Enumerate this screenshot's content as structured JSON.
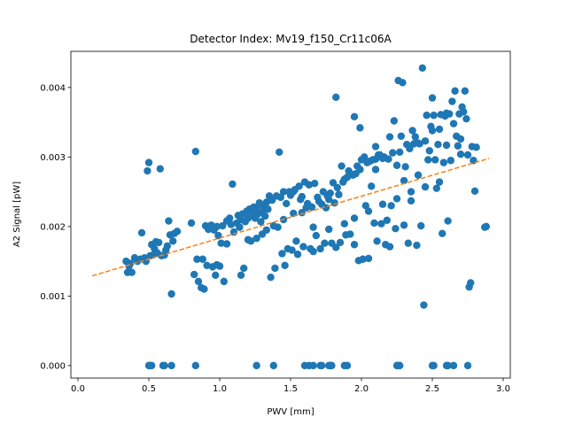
{
  "chart_data": {
    "type": "scatter",
    "title": "Detector Index: Mv19_f150_Cr11c06A",
    "xlabel": "PWV [mm]",
    "ylabel": "A2 Signal [pW]",
    "xlim": [
      -0.05,
      3.05
    ],
    "ylim": [
      -0.00018,
      0.00452
    ],
    "xticks": [
      0.0,
      0.5,
      1.0,
      1.5,
      2.0,
      2.5,
      3.0
    ],
    "xtick_labels": [
      "0.0",
      "0.5",
      "1.0",
      "1.5",
      "2.0",
      "2.5",
      "3.0"
    ],
    "yticks": [
      0.0,
      0.001,
      0.002,
      0.003,
      0.004
    ],
    "ytick_labels": [
      "0.000",
      "0.001",
      "0.002",
      "0.003",
      "0.004"
    ],
    "grid": false,
    "legend": false,
    "colors": {
      "points": "#1f77b4",
      "fit_line": "#ff7f0e"
    },
    "fit_line": {
      "style": "dashed",
      "x": [
        0.1,
        2.9
      ],
      "y": [
        0.00129,
        0.00298
      ]
    },
    "points": [
      [
        0.34,
        0.0015
      ],
      [
        0.35,
        0.00134
      ],
      [
        0.36,
        0.00143
      ],
      [
        0.37,
        0.00147
      ],
      [
        0.38,
        0.00134
      ],
      [
        0.4,
        0.00155
      ],
      [
        0.42,
        0.0015
      ],
      [
        0.44,
        0.00153
      ],
      [
        0.45,
        0.00191
      ],
      [
        0.47,
        0.00155
      ],
      [
        0.48,
        0.0015
      ],
      [
        0.49,
        0.0028
      ],
      [
        0.5,
        0.00292
      ],
      [
        0.51,
        0.00158
      ],
      [
        0.52,
        0.00174
      ],
      [
        0.53,
        0.00159
      ],
      [
        0.54,
        0.00168
      ],
      [
        0.55,
        0.00178
      ],
      [
        0.56,
        0.00162
      ],
      [
        0.57,
        0.00177
      ],
      [
        0.58,
        0.00283
      ],
      [
        0.59,
        0.00158
      ],
      [
        0.61,
        0.00159
      ],
      [
        0.62,
        0.00166
      ],
      [
        0.63,
        0.00172
      ],
      [
        0.64,
        0.00208
      ],
      [
        0.65,
        0.00188
      ],
      [
        0.66,
        0.00103
      ],
      [
        0.67,
        0.00179
      ],
      [
        0.68,
        0.0019
      ],
      [
        0.7,
        0.00193
      ],
      [
        0.8,
        0.00205
      ],
      [
        0.82,
        0.00131
      ],
      [
        0.83,
        0.00308
      ],
      [
        0.84,
        0.00153
      ],
      [
        0.85,
        0.00121
      ],
      [
        0.87,
        0.00112
      ],
      [
        0.88,
        0.00153
      ],
      [
        0.89,
        0.0011
      ],
      [
        0.9,
        0.00201
      ],
      [
        0.91,
        0.00144
      ],
      [
        0.92,
        0.00196
      ],
      [
        0.94,
        0.00202
      ],
      [
        0.95,
        0.00142
      ],
      [
        0.96,
        0.00195
      ],
      [
        0.97,
        0.0013
      ],
      [
        0.98,
        0.002
      ],
      [
        0.99,
        0.00187
      ],
      [
        1.0,
        0.00143
      ],
      [
        1.01,
        0.00176
      ],
      [
        1.02,
        0.00201
      ],
      [
        1.03,
        0.00121
      ],
      [
        1.05,
        0.00208
      ],
      [
        1.07,
        0.00212
      ],
      [
        1.08,
        0.00203
      ],
      [
        1.09,
        0.00261
      ],
      [
        1.1,
        0.00192
      ],
      [
        1.12,
        0.00205
      ],
      [
        1.13,
        0.00216
      ],
      [
        1.14,
        0.00199
      ],
      [
        1.15,
        0.0021
      ],
      [
        1.16,
        0.00218
      ],
      [
        1.17,
        0.0014
      ],
      [
        1.18,
        0.00207
      ],
      [
        1.19,
        0.00222
      ],
      [
        1.2,
        0.00212
      ],
      [
        1.21,
        0.00225
      ],
      [
        1.22,
        0.00179
      ],
      [
        1.23,
        0.00218
      ],
      [
        1.24,
        0.00228
      ],
      [
        1.25,
        0.00212
      ],
      [
        1.26,
        0.00226
      ],
      [
        1.27,
        0.00218
      ],
      [
        1.28,
        0.00234
      ],
      [
        1.29,
        0.00207
      ],
      [
        1.3,
        0.00221
      ],
      [
        1.31,
        0.00229
      ],
      [
        1.32,
        0.00215
      ],
      [
        1.33,
        0.00235
      ],
      [
        1.34,
        0.00225
      ],
      [
        1.35,
        0.00244
      ],
      [
        1.36,
        0.00127
      ],
      [
        1.37,
        0.00238
      ],
      [
        1.38,
        0.00201
      ],
      [
        1.39,
        0.0014
      ],
      [
        1.4,
        0.00244
      ],
      [
        1.41,
        0.00199
      ],
      [
        1.42,
        0.00307
      ],
      [
        1.43,
        0.00242
      ],
      [
        1.44,
        0.00161
      ],
      [
        1.45,
        0.0025
      ],
      [
        1.46,
        0.00144
      ],
      [
        1.47,
        0.00233
      ],
      [
        1.48,
        0.00168
      ],
      [
        1.49,
        0.0025
      ],
      [
        1.5,
        0.00245
      ],
      [
        1.51,
        0.00166
      ],
      [
        1.52,
        0.0025
      ],
      [
        1.53,
        0.00253
      ],
      [
        1.54,
        0.00179
      ],
      [
        1.55,
        0.0016
      ],
      [
        1.56,
        0.00258
      ],
      [
        1.57,
        0.00239
      ],
      [
        1.58,
        0.00243
      ],
      [
        1.59,
        0.00171
      ],
      [
        1.6,
        0.00264
      ],
      [
        1.61,
        0.00227
      ],
      [
        1.62,
        0.00233
      ],
      [
        1.63,
        0.0026
      ],
      [
        1.64,
        0.00168
      ],
      [
        1.65,
        0.00228
      ],
      [
        1.66,
        0.00164
      ],
      [
        1.67,
        0.00262
      ],
      [
        1.68,
        0.00187
      ],
      [
        1.69,
        0.00242
      ],
      [
        1.7,
        0.00236
      ],
      [
        1.71,
        0.00168
      ],
      [
        1.72,
        0.00232
      ],
      [
        1.73,
        0.0025
      ],
      [
        1.74,
        0.00176
      ],
      [
        1.75,
        0.00227
      ],
      [
        1.76,
        0.00244
      ],
      [
        1.77,
        0.00239
      ],
      [
        1.78,
        0.00248
      ],
      [
        1.79,
        0.00176
      ],
      [
        1.8,
        0.00263
      ],
      [
        1.81,
        0.00234
      ],
      [
        1.82,
        0.0017
      ],
      [
        1.83,
        0.00256
      ],
      [
        1.84,
        0.00246
      ],
      [
        1.85,
        0.00177
      ],
      [
        1.86,
        0.00287
      ],
      [
        1.87,
        0.00264
      ],
      [
        1.88,
        0.00268
      ],
      [
        1.89,
        0.00188
      ],
      [
        1.9,
        0.00271
      ],
      [
        1.91,
        0.0028
      ],
      [
        1.92,
        0.00189
      ],
      [
        1.93,
        0.00275
      ],
      [
        1.94,
        0.00274
      ],
      [
        1.95,
        0.00174
      ],
      [
        1.96,
        0.00276
      ],
      [
        1.97,
        0.00287
      ],
      [
        1.98,
        0.00151
      ],
      [
        1.99,
        0.00282
      ],
      [
        2.0,
        0.00296
      ],
      [
        2.01,
        0.00153
      ],
      [
        2.02,
        0.003
      ],
      [
        2.03,
        0.0023
      ],
      [
        2.04,
        0.00292
      ],
      [
        2.05,
        0.00154
      ],
      [
        2.06,
        0.00294
      ],
      [
        2.07,
        0.00258
      ],
      [
        2.08,
        0.00296
      ],
      [
        2.09,
        0.00205
      ],
      [
        2.1,
        0.00297
      ],
      [
        2.11,
        0.00179
      ],
      [
        2.12,
        0.00303
      ],
      [
        2.13,
        0.00303
      ],
      [
        2.14,
        0.00204
      ],
      [
        2.15,
        0.00298
      ],
      [
        2.16,
        0.003
      ],
      [
        2.17,
        0.00174
      ],
      [
        2.18,
        0.00209
      ],
      [
        2.19,
        0.00297
      ],
      [
        2.2,
        0.00171
      ],
      [
        2.21,
        0.0023
      ],
      [
        2.22,
        0.00306
      ],
      [
        2.23,
        0.00352
      ],
      [
        2.24,
        0.00197
      ],
      [
        2.25,
        0.00288
      ],
      [
        2.26,
        0.0041
      ],
      [
        2.27,
        0.00307
      ],
      [
        2.28,
        0.0033
      ],
      [
        2.29,
        0.00407
      ],
      [
        2.3,
        0.00202
      ],
      [
        2.31,
        0.00286
      ],
      [
        2.32,
        0.00318
      ],
      [
        2.33,
        0.00176
      ],
      [
        2.34,
        0.00312
      ],
      [
        2.35,
        0.00237
      ],
      [
        2.36,
        0.00338
      ],
      [
        2.37,
        0.00319
      ],
      [
        2.38,
        0.00329
      ],
      [
        2.39,
        0.00173
      ],
      [
        2.4,
        0.0032
      ],
      [
        2.41,
        0.00319
      ],
      [
        2.42,
        0.00201
      ],
      [
        2.43,
        0.00428
      ],
      [
        2.44,
        0.00087
      ],
      [
        2.45,
        0.00323
      ],
      [
        2.46,
        0.0036
      ],
      [
        2.47,
        0.00296
      ],
      [
        2.48,
        0.00309
      ],
      [
        2.49,
        0.00344
      ],
      [
        2.5,
        0.00385
      ],
      [
        2.51,
        0.0036
      ],
      [
        2.52,
        0.00296
      ],
      [
        2.53,
        0.00255
      ],
      [
        2.54,
        0.00318
      ],
      [
        2.55,
        0.0034
      ],
      [
        2.56,
        0.00361
      ],
      [
        2.57,
        0.0019
      ],
      [
        2.58,
        0.00292
      ],
      [
        2.59,
        0.00359
      ],
      [
        2.6,
        0.00363
      ],
      [
        2.61,
        0.00208
      ],
      [
        2.62,
        0.00362
      ],
      [
        2.63,
        0.00295
      ],
      [
        2.64,
        0.0038
      ],
      [
        2.65,
        0.00348
      ],
      [
        2.66,
        0.00395
      ],
      [
        2.67,
        0.0033
      ],
      [
        2.68,
        0.00316
      ],
      [
        2.69,
        0.00362
      ],
      [
        2.7,
        0.00326
      ],
      [
        2.71,
        0.00372
      ],
      [
        2.72,
        0.00365
      ],
      [
        2.73,
        0.00395
      ],
      [
        2.74,
        0.00355
      ],
      [
        2.75,
        0.00303
      ],
      [
        2.76,
        0.00113
      ],
      [
        2.77,
        0.00119
      ],
      [
        2.78,
        0.00315
      ],
      [
        2.79,
        0.00295
      ],
      [
        2.8,
        0.00251
      ],
      [
        2.81,
        0.00314
      ],
      [
        2.87,
        0.00199
      ],
      [
        2.88,
        0.002
      ],
      [
        2.1,
        0.00315
      ],
      [
        1.15,
        0.0013
      ],
      [
        1.05,
        0.00175
      ],
      [
        1.2,
        0.00181
      ],
      [
        0.98,
        0.00145
      ],
      [
        1.26,
        0.00183
      ],
      [
        1.3,
        0.00189
      ],
      [
        1.33,
        0.00195
      ],
      [
        1.45,
        0.0021
      ],
      [
        1.52,
        0.00219
      ],
      [
        1.58,
        0.0022
      ],
      [
        1.66,
        0.00199
      ],
      [
        1.77,
        0.00196
      ],
      [
        1.88,
        0.00204
      ],
      [
        1.95,
        0.00212
      ],
      [
        2.05,
        0.00222
      ],
      [
        2.15,
        0.00232
      ],
      [
        2.25,
        0.0024
      ],
      [
        2.35,
        0.0025
      ],
      [
        2.45,
        0.00257
      ],
      [
        2.55,
        0.00264
      ],
      [
        1.82,
        0.00386
      ],
      [
        1.95,
        0.00358
      ],
      [
        1.99,
        0.00342
      ],
      [
        2.1,
        0.00282
      ],
      [
        2.2,
        0.00329
      ],
      [
        2.3,
        0.00266
      ],
      [
        2.4,
        0.00274
      ],
      [
        2.5,
        0.00338
      ],
      [
        2.6,
        0.00317
      ],
      [
        2.7,
        0.00304
      ],
      [
        0.5,
        0.0
      ],
      [
        0.51,
        0.0
      ],
      [
        0.52,
        0.0
      ],
      [
        0.6,
        0.0
      ],
      [
        0.61,
        0.0
      ],
      [
        0.66,
        0.0
      ],
      [
        0.83,
        0.0
      ],
      [
        1.26,
        0.0
      ],
      [
        1.38,
        0.0
      ],
      [
        1.6,
        0.0
      ],
      [
        1.63,
        0.0
      ],
      [
        1.66,
        0.0
      ],
      [
        1.71,
        0.0
      ],
      [
        1.72,
        0.0
      ],
      [
        1.77,
        0.0
      ],
      [
        1.78,
        0.0
      ],
      [
        1.79,
        0.0
      ],
      [
        1.88,
        0.0
      ],
      [
        1.9,
        0.0
      ],
      [
        2.25,
        0.0
      ],
      [
        2.26,
        0.0
      ],
      [
        2.27,
        0.0
      ],
      [
        2.5,
        0.0
      ],
      [
        2.51,
        0.0
      ],
      [
        2.6,
        0.0
      ],
      [
        2.61,
        0.0
      ],
      [
        2.65,
        0.0
      ],
      [
        2.75,
        0.0
      ]
    ]
  }
}
